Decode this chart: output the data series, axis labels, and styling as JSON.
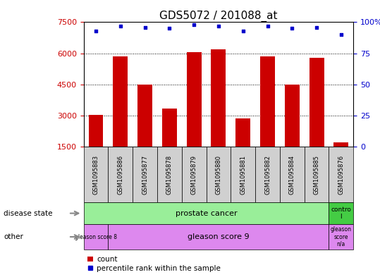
{
  "title": "GDS5072 / 201088_at",
  "samples": [
    "GSM1095883",
    "GSM1095886",
    "GSM1095877",
    "GSM1095878",
    "GSM1095879",
    "GSM1095880",
    "GSM1095881",
    "GSM1095882",
    "GSM1095884",
    "GSM1095885",
    "GSM1095876"
  ],
  "bar_values": [
    3050,
    5850,
    4500,
    3350,
    6050,
    6200,
    2850,
    5850,
    4500,
    5800,
    1700
  ],
  "percentile_values": [
    93,
    97,
    96,
    95,
    98,
    97,
    93,
    97,
    95,
    96,
    90
  ],
  "bar_color": "#cc0000",
  "dot_color": "#0000cc",
  "ylim_left": [
    1500,
    7500
  ],
  "ylim_right": [
    0,
    100
  ],
  "yticks_left": [
    1500,
    3000,
    4500,
    6000,
    7500
  ],
  "yticks_right": [
    0,
    25,
    50,
    75,
    100
  ],
  "ytick_labels_right": [
    "0",
    "25",
    "50",
    "75",
    "100%"
  ],
  "grid_values": [
    3000,
    4500,
    6000
  ],
  "disease_state_row_label": "disease state",
  "other_row_label": "other",
  "legend_count_label": "count",
  "legend_percentile_label": "percentile rank within the sample",
  "bar_width": 0.6,
  "tick_label_color_left": "#cc0000",
  "tick_label_color_right": "#0000cc",
  "title_fontsize": 11,
  "axis_fontsize": 8,
  "sample_fontsize": 6,
  "bg_color": "#ffffff",
  "sample_bg": "#d0d0d0",
  "prostate_color": "#99ee99",
  "control_color": "#44cc44",
  "gleason_color": "#dd88ee"
}
